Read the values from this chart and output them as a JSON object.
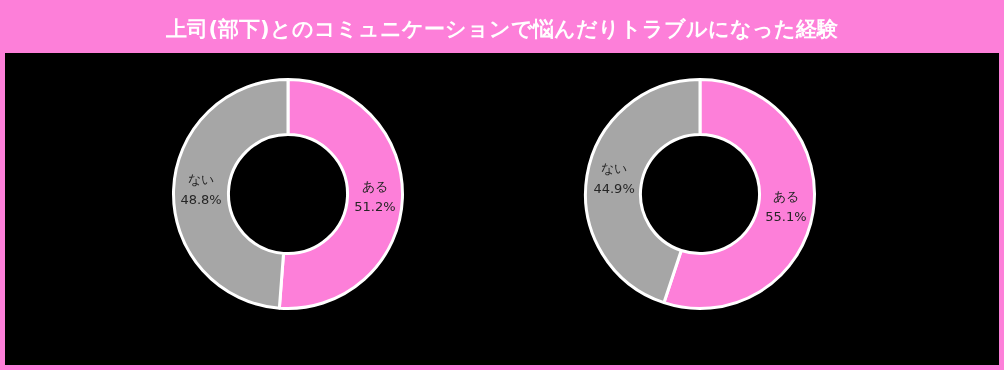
{
  "chart_data": [
    {
      "type": "donut",
      "title": "上司(部下)とのコミュニケーションで悩んだりトラブルになった経験",
      "categories": [
        "ある",
        "ない"
      ],
      "values": [
        51.2,
        48.8
      ],
      "colors": [
        "#fd7fd9",
        "#a6a6a6"
      ],
      "value_labels": [
        "51.2%",
        "48.8%"
      ],
      "legend": false
    },
    {
      "type": "donut",
      "categories": [
        "ある",
        "ない"
      ],
      "values": [
        55.1,
        44.9
      ],
      "colors": [
        "#fd7fd9",
        "#a6a6a6"
      ],
      "value_labels": [
        "55.1%",
        "44.9%"
      ],
      "legend": false
    }
  ]
}
